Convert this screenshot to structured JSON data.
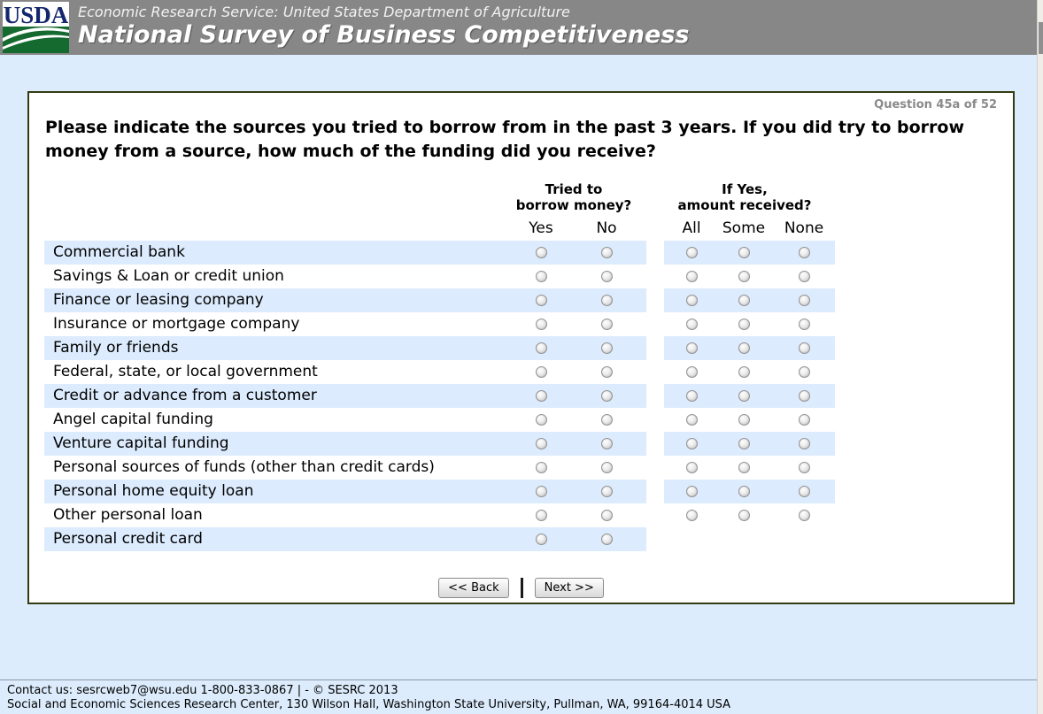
{
  "header": {
    "logo_text": "USDA",
    "agency_line": "Economic Research Service: United States Department of Agriculture",
    "survey_title": "National Survey of Business Competitiveness"
  },
  "panel": {
    "progress_label": "Question 45a of 52",
    "question_text": "Please indicate the sources you tried to borrow from in the past 3 years. If you did try to borrow money from a source, how much of the funding did you receive?"
  },
  "table": {
    "group_headers": [
      {
        "lines": [
          "Tried to",
          "borrow money?"
        ]
      },
      {
        "lines": [
          "If Yes,",
          "amount received?"
        ]
      }
    ],
    "borrow_options": [
      "Yes",
      "No"
    ],
    "amount_options": [
      "All",
      "Some",
      "None"
    ],
    "rows": [
      {
        "label": "Commercial bank",
        "has_amount": true
      },
      {
        "label": "Savings & Loan or credit union",
        "has_amount": true
      },
      {
        "label": "Finance or leasing company",
        "has_amount": true
      },
      {
        "label": "Insurance or mortgage company",
        "has_amount": true
      },
      {
        "label": "Family or friends",
        "has_amount": true
      },
      {
        "label": "Federal, state, or local government",
        "has_amount": true
      },
      {
        "label": "Credit or advance from a customer",
        "has_amount": true
      },
      {
        "label": "Angel capital funding",
        "has_amount": true
      },
      {
        "label": "Venture capital funding",
        "has_amount": true
      },
      {
        "label": "Personal sources of funds (other than credit cards)",
        "has_amount": true
      },
      {
        "label": "Personal home equity loan",
        "has_amount": true
      },
      {
        "label": "Other personal loan",
        "has_amount": true
      },
      {
        "label": "Personal credit card",
        "has_amount": false
      }
    ]
  },
  "buttons": {
    "back_label": "<< Back",
    "next_label": "Next >>"
  },
  "footer": {
    "line1": "Contact us: sesrcweb7@wsu.edu 1-800-833-0867 | - © SESRC 2013",
    "line2": "Social and Economic Sciences Research Center, 130 Wilson Hall, Washington State University, Pullman, WA, 99164-4014 USA"
  },
  "colors": {
    "header_bar": "#878787",
    "page_background": "#dcecfc",
    "row_stripe": "#dcebfd",
    "panel_border": "#333a12",
    "usda_logo_blue": "#14266c",
    "usda_logo_green": "#156a2f",
    "progress_text": "#8a8a8a"
  }
}
